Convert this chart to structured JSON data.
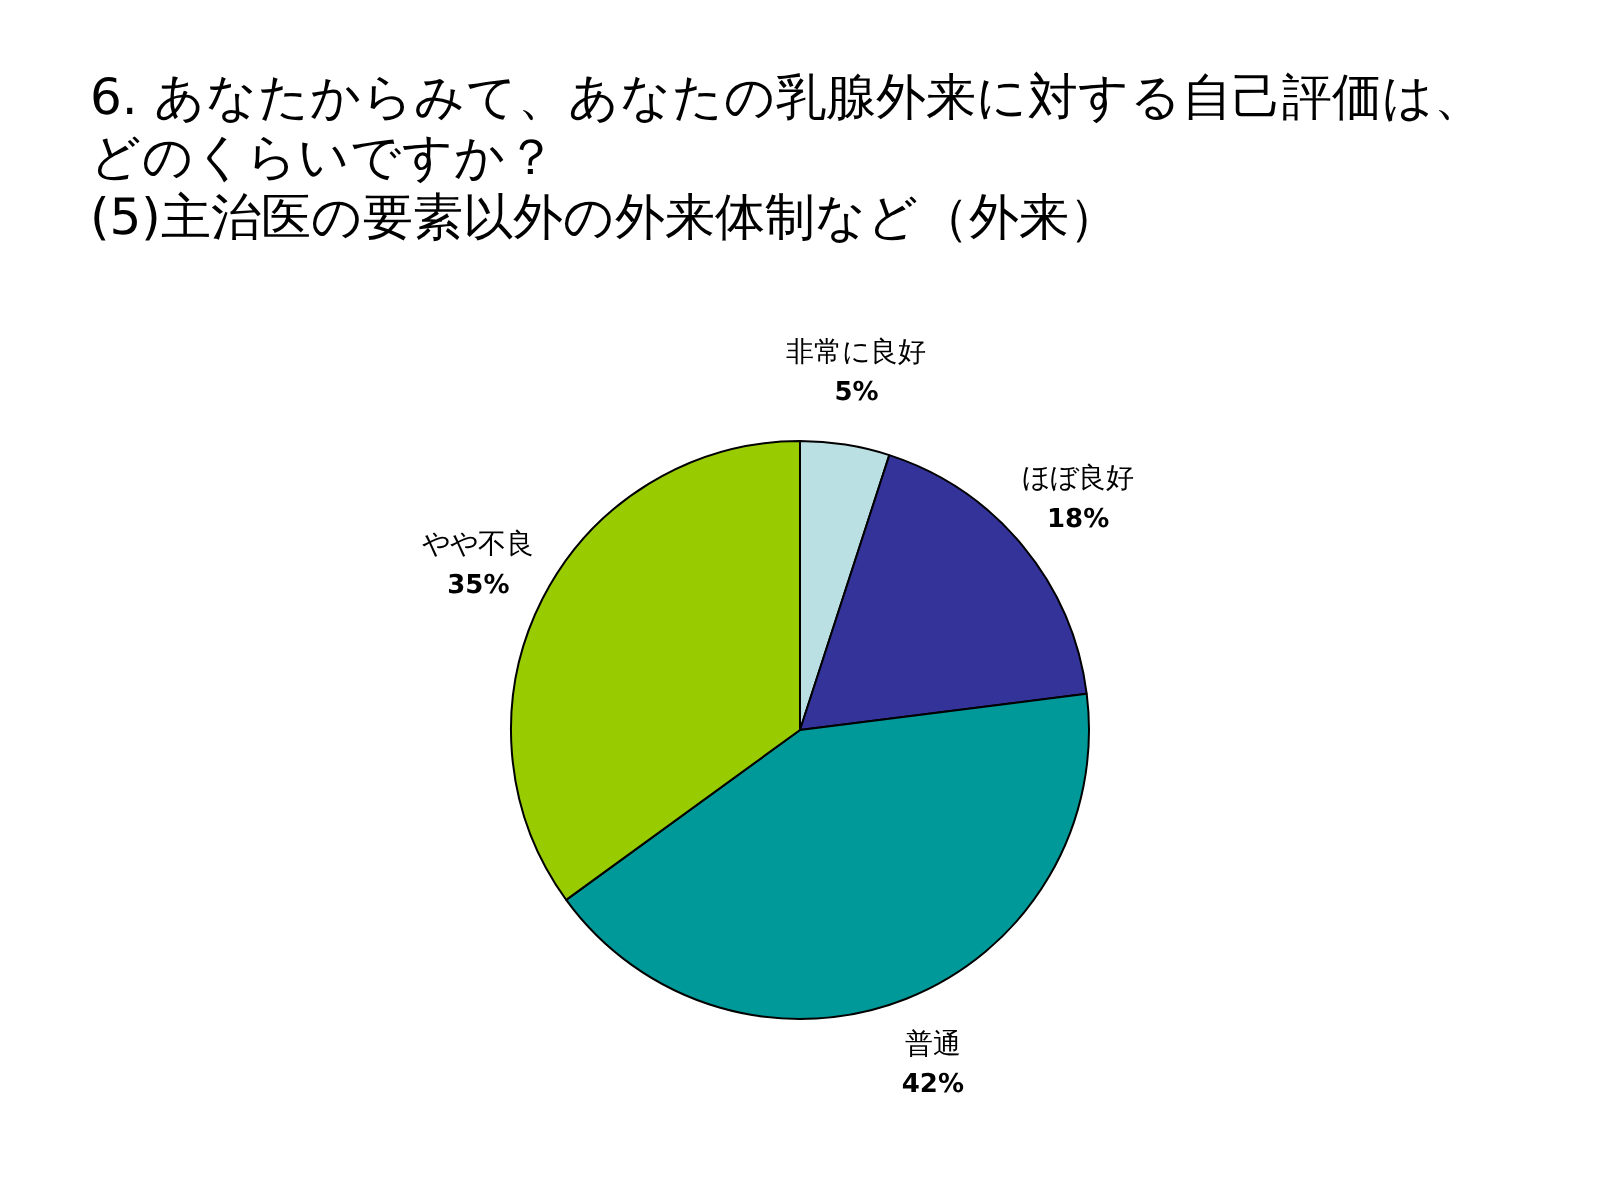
{
  "chart_data": {
    "type": "pie",
    "title": "6. あなたからみて、あなたの乳腺外来に対する自己評価は、どのくらいですか？",
    "subtitle": "(5)主治医の要素以外の外来体制など（外来）",
    "categories": [
      "非常に良好",
      "ほぼ良好",
      "普通",
      "やや不良"
    ],
    "values": [
      5,
      18,
      42,
      35
    ],
    "colors": [
      "#bbe0e3",
      "#333399",
      "#009999",
      "#99cc00"
    ],
    "value_labels": [
      "5%",
      "18%",
      "42%",
      "35%"
    ]
  }
}
